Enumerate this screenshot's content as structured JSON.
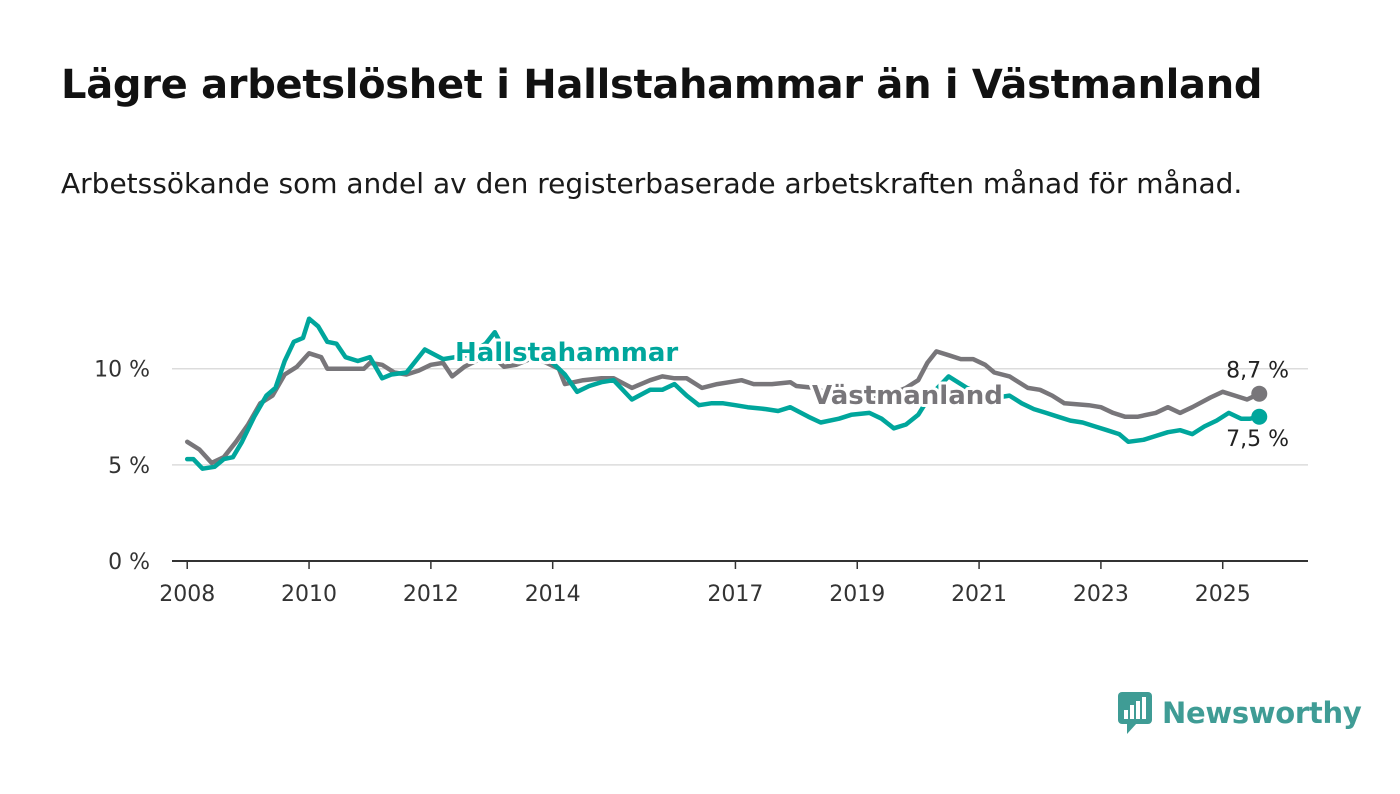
{
  "title": "Lägre arbetslöshet i Hallstahammar än i Västmanland",
  "subtitle": "Arbetssökande som andel av den registerbaserade arbetskraften månad för månad.",
  "brand": {
    "name": "Newsworthy",
    "color": "#3f9c95",
    "icon": "bar-chart-speech-icon"
  },
  "chart_data": {
    "type": "line",
    "ylim": [
      0,
      13
    ],
    "xlim": [
      2007.75,
      2026.4
    ],
    "y_ticks": [
      {
        "value": 0,
        "label": "0 %"
      },
      {
        "value": 5,
        "label": "5 %"
      },
      {
        "value": 10,
        "label": "10 %"
      }
    ],
    "x_ticks": [
      {
        "value": 2008,
        "label": "2008"
      },
      {
        "value": 2010,
        "label": "2010"
      },
      {
        "value": 2012,
        "label": "2012"
      },
      {
        "value": 2014,
        "label": "2014"
      },
      {
        "value": 2017,
        "label": "2017"
      },
      {
        "value": 2019,
        "label": "2019"
      },
      {
        "value": 2021,
        "label": "2021"
      },
      {
        "value": 2023,
        "label": "2023"
      },
      {
        "value": 2025,
        "label": "2025"
      }
    ],
    "grid": true,
    "series": [
      {
        "name": "Västmanland",
        "color": "#78767a",
        "end_label": "8,7 %",
        "points": [
          [
            2008.0,
            6.2
          ],
          [
            2008.2,
            5.8
          ],
          [
            2008.4,
            5.1
          ],
          [
            2008.6,
            5.4
          ],
          [
            2008.8,
            6.2
          ],
          [
            2009.0,
            7.1
          ],
          [
            2009.2,
            8.2
          ],
          [
            2009.4,
            8.6
          ],
          [
            2009.6,
            9.7
          ],
          [
            2009.8,
            10.1
          ],
          [
            2010.0,
            10.8
          ],
          [
            2010.2,
            10.6
          ],
          [
            2010.3,
            10.0
          ],
          [
            2010.6,
            10.0
          ],
          [
            2010.9,
            10.0
          ],
          [
            2011.0,
            10.3
          ],
          [
            2011.2,
            10.2
          ],
          [
            2011.4,
            9.8
          ],
          [
            2011.6,
            9.7
          ],
          [
            2011.8,
            9.9
          ],
          [
            2012.0,
            10.2
          ],
          [
            2012.2,
            10.3
          ],
          [
            2012.35,
            9.6
          ],
          [
            2012.55,
            10.1
          ],
          [
            2012.8,
            10.5
          ],
          [
            2013.0,
            10.7
          ],
          [
            2013.2,
            10.1
          ],
          [
            2013.4,
            10.2
          ],
          [
            2013.7,
            10.6
          ],
          [
            2013.9,
            10.3
          ],
          [
            2014.1,
            10.0
          ],
          [
            2014.2,
            9.2
          ],
          [
            2014.5,
            9.4
          ],
          [
            2014.8,
            9.5
          ],
          [
            2015.0,
            9.5
          ],
          [
            2015.3,
            9.0
          ],
          [
            2015.6,
            9.4
          ],
          [
            2015.8,
            9.6
          ],
          [
            2016.0,
            9.5
          ],
          [
            2016.2,
            9.5
          ],
          [
            2016.45,
            9.0
          ],
          [
            2016.7,
            9.2
          ],
          [
            2016.9,
            9.3
          ],
          [
            2017.1,
            9.4
          ],
          [
            2017.3,
            9.2
          ],
          [
            2017.6,
            9.2
          ],
          [
            2017.9,
            9.3
          ],
          [
            2018.0,
            9.1
          ],
          [
            2018.3,
            9.0
          ],
          [
            2018.6,
            8.6
          ],
          [
            2018.9,
            8.5
          ],
          [
            2019.2,
            8.5
          ],
          [
            2019.5,
            8.6
          ],
          [
            2019.8,
            9.0
          ],
          [
            2020.0,
            9.4
          ],
          [
            2020.15,
            10.3
          ],
          [
            2020.3,
            10.9
          ],
          [
            2020.5,
            10.7
          ],
          [
            2020.7,
            10.5
          ],
          [
            2020.9,
            10.5
          ],
          [
            2021.1,
            10.2
          ],
          [
            2021.25,
            9.8
          ],
          [
            2021.5,
            9.6
          ],
          [
            2021.8,
            9.0
          ],
          [
            2022.0,
            8.9
          ],
          [
            2022.2,
            8.6
          ],
          [
            2022.4,
            8.2
          ],
          [
            2022.8,
            8.1
          ],
          [
            2023.0,
            8.0
          ],
          [
            2023.2,
            7.7
          ],
          [
            2023.4,
            7.5
          ],
          [
            2023.6,
            7.5
          ],
          [
            2023.9,
            7.7
          ],
          [
            2024.1,
            8.0
          ],
          [
            2024.3,
            7.7
          ],
          [
            2024.5,
            8.0
          ],
          [
            2024.8,
            8.5
          ],
          [
            2025.0,
            8.8
          ],
          [
            2025.2,
            8.6
          ],
          [
            2025.4,
            8.4
          ],
          [
            2025.6,
            8.7
          ]
        ]
      },
      {
        "name": "Hallstahammar",
        "color": "#00a69c",
        "end_label": "7,5 %",
        "points": [
          [
            2008.0,
            5.3
          ],
          [
            2008.1,
            5.3
          ],
          [
            2008.25,
            4.8
          ],
          [
            2008.45,
            4.9
          ],
          [
            2008.6,
            5.3
          ],
          [
            2008.75,
            5.4
          ],
          [
            2008.9,
            6.2
          ],
          [
            2009.1,
            7.5
          ],
          [
            2009.3,
            8.6
          ],
          [
            2009.45,
            9.0
          ],
          [
            2009.6,
            10.4
          ],
          [
            2009.75,
            11.4
          ],
          [
            2009.9,
            11.6
          ],
          [
            2010.0,
            12.6
          ],
          [
            2010.15,
            12.2
          ],
          [
            2010.3,
            11.4
          ],
          [
            2010.45,
            11.3
          ],
          [
            2010.6,
            10.6
          ],
          [
            2010.8,
            10.4
          ],
          [
            2011.0,
            10.6
          ],
          [
            2011.2,
            9.5
          ],
          [
            2011.35,
            9.7
          ],
          [
            2011.6,
            9.8
          ],
          [
            2011.9,
            11.0
          ],
          [
            2012.2,
            10.5
          ],
          [
            2012.6,
            10.7
          ],
          [
            2012.9,
            11.3
          ],
          [
            2013.05,
            11.9
          ],
          [
            2013.3,
            10.4
          ],
          [
            2013.6,
            10.5
          ],
          [
            2013.9,
            10.6
          ],
          [
            2014.0,
            10.3
          ],
          [
            2014.2,
            9.7
          ],
          [
            2014.4,
            8.8
          ],
          [
            2014.6,
            9.1
          ],
          [
            2014.8,
            9.3
          ],
          [
            2015.0,
            9.4
          ],
          [
            2015.3,
            8.4
          ],
          [
            2015.6,
            8.9
          ],
          [
            2015.8,
            8.9
          ],
          [
            2016.0,
            9.2
          ],
          [
            2016.2,
            8.6
          ],
          [
            2016.4,
            8.1
          ],
          [
            2016.6,
            8.2
          ],
          [
            2016.8,
            8.2
          ],
          [
            2017.0,
            8.1
          ],
          [
            2017.2,
            8.0
          ],
          [
            2017.5,
            7.9
          ],
          [
            2017.7,
            7.8
          ],
          [
            2017.9,
            8.0
          ],
          [
            2018.2,
            7.5
          ],
          [
            2018.4,
            7.2
          ],
          [
            2018.7,
            7.4
          ],
          [
            2018.9,
            7.6
          ],
          [
            2019.2,
            7.7
          ],
          [
            2019.4,
            7.4
          ],
          [
            2019.6,
            6.9
          ],
          [
            2019.8,
            7.1
          ],
          [
            2020.0,
            7.6
          ],
          [
            2020.2,
            8.6
          ],
          [
            2020.5,
            9.6
          ],
          [
            2020.8,
            9.0
          ],
          [
            2021.1,
            8.6
          ],
          [
            2021.3,
            8.5
          ],
          [
            2021.5,
            8.6
          ],
          [
            2021.7,
            8.2
          ],
          [
            2021.9,
            7.9
          ],
          [
            2022.1,
            7.7
          ],
          [
            2022.3,
            7.5
          ],
          [
            2022.5,
            7.3
          ],
          [
            2022.7,
            7.2
          ],
          [
            2022.9,
            7.0
          ],
          [
            2023.1,
            6.8
          ],
          [
            2023.3,
            6.6
          ],
          [
            2023.45,
            6.2
          ],
          [
            2023.7,
            6.3
          ],
          [
            2023.9,
            6.5
          ],
          [
            2024.1,
            6.7
          ],
          [
            2024.3,
            6.8
          ],
          [
            2024.5,
            6.6
          ],
          [
            2024.7,
            7.0
          ],
          [
            2024.9,
            7.3
          ],
          [
            2025.1,
            7.7
          ],
          [
            2025.3,
            7.4
          ],
          [
            2025.45,
            7.4
          ],
          [
            2025.6,
            7.5
          ]
        ]
      }
    ]
  }
}
